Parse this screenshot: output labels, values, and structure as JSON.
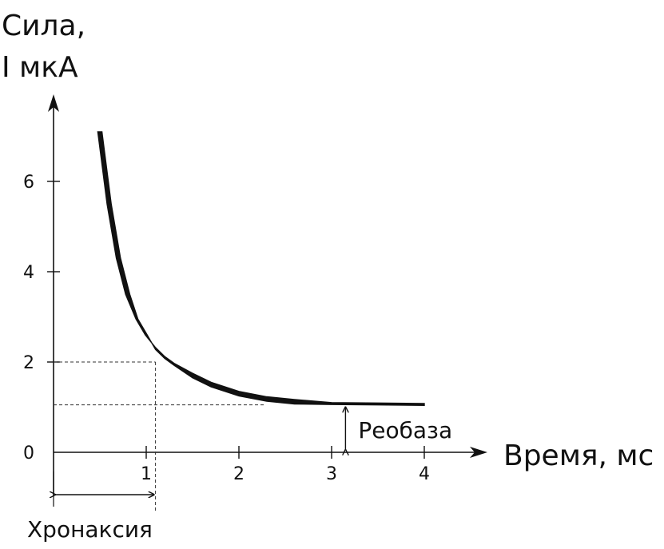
{
  "chart_data": {
    "type": "line",
    "ylabel_line1": "Сила,",
    "ylabel_line2": "I мкА",
    "xlabel": "Время, мс",
    "x_ticks": [
      "1",
      "2",
      "3",
      "4"
    ],
    "y_ticks": [
      "0",
      "2",
      "4",
      "6"
    ],
    "xlim": [
      -0.05,
      4.6
    ],
    "ylim": [
      -1.2,
      8.2
    ],
    "grid": false,
    "series": [
      {
        "x": [
          0.5,
          0.6,
          0.7,
          0.8,
          0.9,
          1.0,
          1.1,
          1.2,
          1.3,
          1.5,
          1.7,
          2.0,
          2.3,
          2.6,
          3.0,
          3.5,
          4.0
        ],
        "y": [
          7.1,
          5.5,
          4.3,
          3.5,
          2.95,
          2.6,
          2.3,
          2.1,
          1.95,
          1.7,
          1.5,
          1.3,
          1.18,
          1.12,
          1.08,
          1.07,
          1.06
        ]
      }
    ],
    "annotations": {
      "rheobase": {
        "label": "Реобаза",
        "value": 1.05,
        "at_x": 3.15
      },
      "chronaxie": {
        "label": "Хронаксия",
        "value": 1.1,
        "level": 2.0
      }
    }
  }
}
